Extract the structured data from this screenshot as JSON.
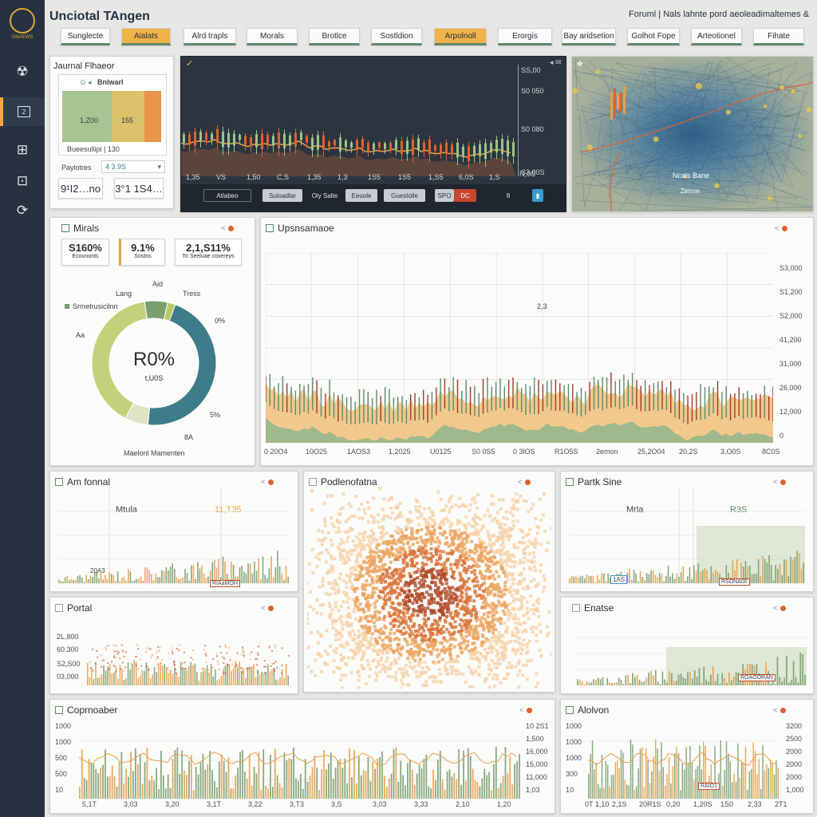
{
  "app": {
    "title": "Unciotal TAngen",
    "header_info": "Foruml | Nals lahnte pord aeoleadimaltemes &"
  },
  "sidebar": {
    "logo_text": "ONAEWS",
    "items": [
      {
        "icon": "globe-icon",
        "glyph": "☢"
      },
      {
        "icon": "document-icon",
        "glyph": "2"
      },
      {
        "icon": "chart-icon",
        "glyph": "⊞"
      },
      {
        "icon": "lock-icon",
        "glyph": "⊡"
      },
      {
        "icon": "refresh-icon",
        "glyph": "⟳"
      }
    ]
  },
  "tabs": [
    {
      "label": "Sunglecte",
      "highlight": false
    },
    {
      "label": "Aialats",
      "highlight": true
    },
    {
      "label": "Alrd trapls",
      "highlight": false
    },
    {
      "label": "Morals",
      "highlight": false
    },
    {
      "label": "Brotlce",
      "highlight": false
    },
    {
      "label": "Sostldion",
      "highlight": false
    },
    {
      "label": "Arpolnoll",
      "highlight": true
    },
    {
      "label": "Erorgis",
      "highlight": false
    },
    {
      "label": "Bay aridsetion",
      "highlight": false
    },
    {
      "label": "Golhot Fope",
      "highlight": false
    },
    {
      "label": "Arteotionel",
      "highlight": false
    },
    {
      "label": "Fihate",
      "highlight": false
    }
  ],
  "journal": {
    "title": "Jaurnal Flhaeor",
    "inner_label": "Bnlwarl",
    "bar_label_a": "1,Z00",
    "bar_label_b": "155",
    "caption": "Bueesullipi | 130",
    "payments_label": "Paylotres",
    "payments_value": "4 3.9S",
    "stat_a": "9¹I2…no",
    "stat_b": "3°1 1S4…"
  },
  "candle": {
    "y_ticks": [
      "SS,00",
      "S0 050",
      "S0 080",
      "S3,00S"
    ],
    "x_ticks": [
      "1,35",
      "VS",
      "1,50",
      "C,S",
      "1,35",
      "1,3",
      "1S5",
      "1S5",
      "1,S5",
      "6,0S",
      "1,S"
    ],
    "corner_label": "N,0S",
    "controls": [
      "Atlabeo",
      "Suloadlar",
      "Oly Salte",
      "Eeuole",
      "Guestolle",
      "SPO",
      "DC",
      "8"
    ]
  },
  "map": {
    "label": "Ncals Bane",
    "sublabel": "Zeinse"
  },
  "metrics": {
    "title": "Mirals",
    "stats": [
      {
        "value": "S160%",
        "label": "Ecounonts"
      },
      {
        "value": "9.1%",
        "label": "Sostns"
      },
      {
        "value": "2,1,S11%",
        "label": "To Seeluae covereys"
      }
    ],
    "legend": "Srmelrusicilnn",
    "labels": {
      "lang": "Lang",
      "aid": "Aid",
      "tress": "Tress",
      "pct_a": "0%",
      "aa": "Aa",
      "pct_b": "5%",
      "eighty": "8A"
    },
    "center_value": "R0%",
    "center_sub": "t,U0S",
    "footer": "Maelonl Mamenten"
  },
  "upper": {
    "title": "Upsnsamaoe",
    "y_ticks": [
      "S3,000",
      "S1,200",
      "S2,000",
      "41,200",
      "31,000",
      "26,000",
      "12,000",
      "0"
    ],
    "x_ticks": [
      "0 20O4",
      "10O25",
      "1AOS3",
      "1,2025",
      "U0125",
      "S0 0S5",
      "0 3lOS",
      "R1O5S",
      "2emon",
      "25,2O04",
      "20,2S",
      "3,O0S",
      "8C0S"
    ],
    "annotation": "2,3"
  },
  "am_panel": {
    "title": "Am fonnal",
    "label": "Mtula",
    "value": "11,T35",
    "tooltip": "20A3",
    "badge": "RIAaMOH"
  },
  "scatter_panel": {
    "title": "Podlenofatna"
  },
  "partk": {
    "title": "Partk Sine",
    "label": "Mrla",
    "value": "R3S",
    "tooltip": "1AS",
    "badge": "RSONA00"
  },
  "portal": {
    "title": "Portal",
    "y_ticks": [
      "2L,800",
      "60,300",
      "S2,S00",
      "03,000"
    ]
  },
  "enase": {
    "title": "Enatse",
    "badge": "ROAOORAN"
  },
  "commander": {
    "title": "Coprnoaber",
    "y_ticks": [
      "1000",
      "1000",
      "500",
      "500",
      "10"
    ],
    "y_ticks_right": [
      "10 2S1",
      "1,500",
      "16,000",
      "15,000",
      "11,000",
      "1,03"
    ],
    "x_ticks": [
      "5,1T",
      "3,03",
      "3,20",
      "3,1T",
      "3,22",
      "3,T3",
      "3,S",
      "3,03",
      "3,33",
      "2,10",
      "1,20"
    ]
  },
  "alvon": {
    "title": "Alolvon",
    "y_ticks": [
      "1000",
      "1000",
      "1000",
      "300",
      "10"
    ],
    "y_ticks_right": [
      "3200",
      "2500",
      "2000",
      "2000",
      "2000",
      "1,000"
    ],
    "x_ticks": [
      "0T 1,10",
      "2,1S",
      "20R1S",
      "0,20",
      "1,20S",
      "1S0",
      "2,33",
      "2T1"
    ],
    "badge": "RAIO1"
  },
  "colors": {
    "green": "#7a9e6f",
    "orange": "#e8a04a",
    "red": "#c8462e",
    "navy": "#27313f",
    "teal": "#3f7c8a",
    "lime": "#b8c96a"
  }
}
